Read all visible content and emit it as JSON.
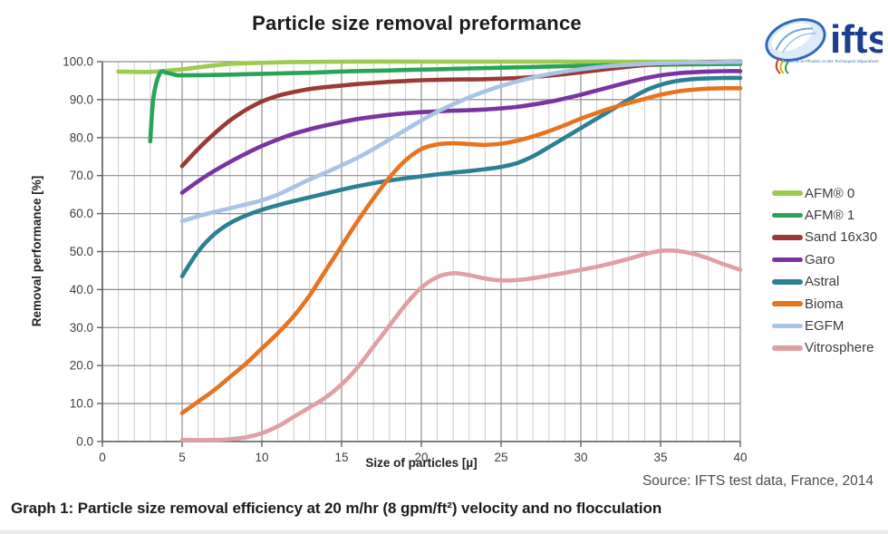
{
  "page": {
    "source_note": "Source: IFTS test data, France, 2014",
    "caption": "Graph 1: Particle size removal efficiency at 20 m/hr (8 gpm/ft²) velocity and no flocculation"
  },
  "logo": {
    "text": "ifts",
    "tagline": "Institut de la Filtration et des Techniques Séparatives"
  },
  "chart_data": {
    "type": "line",
    "title": "Particle size removal preformance",
    "xlabel": "Size of particles [µ]",
    "ylabel": "Removal performance [%]",
    "xlim": [
      0,
      40
    ],
    "ylim": [
      0,
      100
    ],
    "x_ticks": [
      0,
      5,
      10,
      15,
      20,
      25,
      30,
      35,
      40
    ],
    "x_tick_labels": [
      "0",
      "5",
      "10",
      "15",
      "20",
      "25",
      "30",
      "35",
      "40"
    ],
    "y_ticks": [
      0,
      10,
      20,
      30,
      40,
      50,
      60,
      70,
      80,
      90,
      100
    ],
    "y_tick_labels": [
      "0.0",
      "10.0",
      "20.0",
      "30.0",
      "40.0",
      "50.0",
      "60.0",
      "70.0",
      "80.0",
      "90.0",
      "100.0"
    ],
    "grid": {
      "x_minor_step": 1,
      "x_major_step": 5,
      "y_step": 10,
      "minor_color": "#cbcbcb",
      "major_color": "#8c8c8c",
      "axis_color": "#5f5f5f"
    },
    "legend_position": "right",
    "series": [
      {
        "name": "AFM® 0",
        "color": "#9ccb4e",
        "points": [
          [
            1,
            97.4
          ],
          [
            2,
            97.3
          ],
          [
            3,
            97.3
          ],
          [
            4,
            97.6
          ],
          [
            5,
            98
          ],
          [
            6,
            98.5
          ],
          [
            7,
            99
          ],
          [
            8,
            99.4
          ],
          [
            10,
            99.7
          ],
          [
            12,
            99.9
          ],
          [
            15,
            100
          ],
          [
            20,
            100
          ],
          [
            25,
            100
          ],
          [
            30,
            100
          ],
          [
            35,
            100
          ],
          [
            40,
            100
          ]
        ]
      },
      {
        "name": "AFM® 1",
        "color": "#27a457",
        "points": [
          [
            3,
            79
          ],
          [
            3.2,
            90.5
          ],
          [
            3.6,
            96.9
          ],
          [
            4,
            97.1
          ],
          [
            4.6,
            96.5
          ],
          [
            5,
            96.4
          ],
          [
            7,
            96.5
          ],
          [
            9,
            96.7
          ],
          [
            11,
            96.9
          ],
          [
            13,
            97.1
          ],
          [
            15,
            97.4
          ],
          [
            17,
            97.6
          ],
          [
            19,
            97.8
          ],
          [
            21,
            98
          ],
          [
            23,
            98.2
          ],
          [
            25,
            98.4
          ],
          [
            27,
            98.6
          ],
          [
            29,
            98.8
          ],
          [
            31,
            99
          ],
          [
            33,
            99.1
          ],
          [
            35,
            99.2
          ],
          [
            37,
            99.3
          ],
          [
            40,
            99.4
          ]
        ]
      },
      {
        "name": "Sand 16x30",
        "color": "#9a3a36",
        "points": [
          [
            5,
            72.5
          ],
          [
            6,
            77
          ],
          [
            7,
            81
          ],
          [
            8,
            84.5
          ],
          [
            9,
            87.3
          ],
          [
            10,
            89.5
          ],
          [
            11,
            91
          ],
          [
            12,
            92
          ],
          [
            13,
            92.8
          ],
          [
            14,
            93.3
          ],
          [
            15,
            93.7
          ],
          [
            16,
            94.1
          ],
          [
            17,
            94.4
          ],
          [
            18,
            94.7
          ],
          [
            19,
            94.9
          ],
          [
            20,
            95.1
          ],
          [
            22,
            95.3
          ],
          [
            24,
            95.4
          ],
          [
            26,
            95.7
          ],
          [
            28,
            96.3
          ],
          [
            30,
            97.2
          ],
          [
            32,
            98.2
          ],
          [
            34,
            99.1
          ],
          [
            36,
            99.6
          ],
          [
            38,
            99.9
          ],
          [
            40,
            100
          ]
        ]
      },
      {
        "name": "Garo",
        "color": "#7a34a2",
        "points": [
          [
            5,
            65.5
          ],
          [
            6,
            68.5
          ],
          [
            7,
            71.2
          ],
          [
            8,
            73.6
          ],
          [
            9,
            75.8
          ],
          [
            10,
            77.8
          ],
          [
            11,
            79.5
          ],
          [
            12,
            81
          ],
          [
            13,
            82.2
          ],
          [
            14,
            83.2
          ],
          [
            15,
            84.1
          ],
          [
            16,
            84.9
          ],
          [
            17,
            85.5
          ],
          [
            18,
            86
          ],
          [
            19,
            86.4
          ],
          [
            20,
            86.7
          ],
          [
            21,
            86.9
          ],
          [
            22,
            87.1
          ],
          [
            23,
            87.2
          ],
          [
            24,
            87.4
          ],
          [
            25,
            87.7
          ],
          [
            26,
            88.1
          ],
          [
            27,
            88.7
          ],
          [
            28,
            89.4
          ],
          [
            29,
            90.3
          ],
          [
            30,
            91.3
          ],
          [
            31,
            92.4
          ],
          [
            32,
            93.5
          ],
          [
            33,
            94.6
          ],
          [
            34,
            95.6
          ],
          [
            35,
            96.4
          ],
          [
            36,
            96.9
          ],
          [
            37,
            97.2
          ],
          [
            38,
            97.4
          ],
          [
            39,
            97.5
          ],
          [
            40,
            97.5
          ]
        ]
      },
      {
        "name": "Astral",
        "color": "#2b8093",
        "points": [
          [
            5,
            43.5
          ],
          [
            6,
            50
          ],
          [
            7,
            54.5
          ],
          [
            8,
            57.5
          ],
          [
            9,
            59.5
          ],
          [
            10,
            61
          ],
          [
            11,
            62.2
          ],
          [
            12,
            63.3
          ],
          [
            13,
            64.3
          ],
          [
            14,
            65.3
          ],
          [
            15,
            66.3
          ],
          [
            16,
            67.2
          ],
          [
            17,
            68
          ],
          [
            18,
            68.7
          ],
          [
            19,
            69.3
          ],
          [
            20,
            69.8
          ],
          [
            21,
            70.3
          ],
          [
            22,
            70.8
          ],
          [
            23,
            71.2
          ],
          [
            24,
            71.7
          ],
          [
            25,
            72.3
          ],
          [
            26,
            73.3
          ],
          [
            27,
            75.1
          ],
          [
            28,
            77.5
          ],
          [
            29,
            80
          ],
          [
            30,
            82.5
          ],
          [
            31,
            85
          ],
          [
            32,
            87.5
          ],
          [
            33,
            90
          ],
          [
            34,
            92.3
          ],
          [
            35,
            93.9
          ],
          [
            36,
            94.9
          ],
          [
            37,
            95.4
          ],
          [
            38,
            95.6
          ],
          [
            39,
            95.7
          ],
          [
            40,
            95.7
          ]
        ]
      },
      {
        "name": "Bioma",
        "color": "#e8731f",
        "points": [
          [
            5,
            7.5
          ],
          [
            6,
            10.5
          ],
          [
            7,
            13.5
          ],
          [
            8,
            17
          ],
          [
            9,
            20.5
          ],
          [
            10,
            24.5
          ],
          [
            11,
            28.5
          ],
          [
            12,
            33
          ],
          [
            13,
            38.5
          ],
          [
            14,
            45
          ],
          [
            15,
            51.5
          ],
          [
            16,
            58
          ],
          [
            17,
            64
          ],
          [
            18,
            69.5
          ],
          [
            19,
            74
          ],
          [
            20,
            77
          ],
          [
            21,
            78.2
          ],
          [
            22,
            78.5
          ],
          [
            23,
            78.3
          ],
          [
            24,
            78.1
          ],
          [
            25,
            78.4
          ],
          [
            26,
            79.2
          ],
          [
            27,
            80.3
          ],
          [
            28,
            81.7
          ],
          [
            29,
            83.3
          ],
          [
            30,
            85
          ],
          [
            31,
            86.5
          ],
          [
            32,
            87.9
          ],
          [
            33,
            89.1
          ],
          [
            34,
            90.2
          ],
          [
            35,
            91.3
          ],
          [
            36,
            92.1
          ],
          [
            37,
            92.6
          ],
          [
            38,
            92.9
          ],
          [
            39,
            93
          ],
          [
            40,
            93
          ]
        ]
      },
      {
        "name": "EGFM",
        "color": "#a8c3e4",
        "points": [
          [
            5,
            58
          ],
          [
            6,
            59.3
          ],
          [
            7,
            60.4
          ],
          [
            8,
            61.4
          ],
          [
            9,
            62.4
          ],
          [
            10,
            63.5
          ],
          [
            11,
            65
          ],
          [
            12,
            67
          ],
          [
            13,
            69
          ],
          [
            14,
            70.8
          ],
          [
            15,
            72.7
          ],
          [
            16,
            74.7
          ],
          [
            17,
            77
          ],
          [
            18,
            79.5
          ],
          [
            19,
            82
          ],
          [
            20,
            84.5
          ],
          [
            21,
            86.8
          ],
          [
            22,
            88.8
          ],
          [
            23,
            90.6
          ],
          [
            24,
            92.2
          ],
          [
            25,
            93.6
          ],
          [
            26,
            94.8
          ],
          [
            27,
            95.8
          ],
          [
            28,
            96.7
          ],
          [
            29,
            97.4
          ],
          [
            30,
            98
          ],
          [
            31,
            98.5
          ],
          [
            32,
            98.9
          ],
          [
            33,
            99.2
          ],
          [
            34,
            99.4
          ],
          [
            35,
            99.6
          ],
          [
            36,
            99.7
          ],
          [
            37,
            99.8
          ],
          [
            38,
            99.8
          ],
          [
            39,
            99.9
          ],
          [
            40,
            99.9
          ]
        ]
      },
      {
        "name": "Vitrosphere",
        "color": "#df9fa4",
        "points": [
          [
            5,
            0.4
          ],
          [
            7,
            0.4
          ],
          [
            8,
            0.6
          ],
          [
            9,
            1.1
          ],
          [
            10,
            2.2
          ],
          [
            11,
            4
          ],
          [
            12,
            6.5
          ],
          [
            13,
            9
          ],
          [
            14,
            11.6
          ],
          [
            15,
            15
          ],
          [
            16,
            19.5
          ],
          [
            17,
            25
          ],
          [
            18,
            30.5
          ],
          [
            19,
            36
          ],
          [
            20,
            40.5
          ],
          [
            21,
            43.3
          ],
          [
            22,
            44.3
          ],
          [
            23,
            43.8
          ],
          [
            24,
            42.9
          ],
          [
            25,
            42.4
          ],
          [
            26,
            42.5
          ],
          [
            27,
            43
          ],
          [
            28,
            43.7
          ],
          [
            29,
            44.4
          ],
          [
            30,
            45.2
          ],
          [
            31,
            46
          ],
          [
            32,
            47
          ],
          [
            33,
            48.1
          ],
          [
            34,
            49.3
          ],
          [
            35,
            50.2
          ],
          [
            36,
            50.2
          ],
          [
            37,
            49.5
          ],
          [
            38,
            48.2
          ],
          [
            39,
            46.6
          ],
          [
            40,
            45.2
          ]
        ]
      }
    ]
  }
}
